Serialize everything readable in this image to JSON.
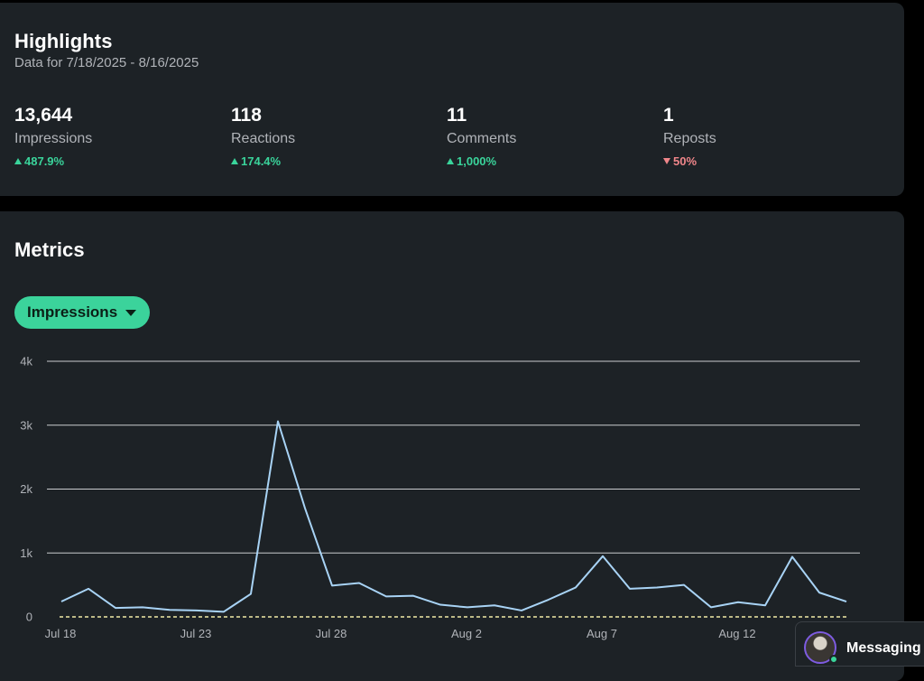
{
  "highlights": {
    "title": "Highlights",
    "subtitle": "Data for 7/18/2025 - 8/16/2025",
    "stats": [
      {
        "value": "13,644",
        "label": "Impressions",
        "change": "487.9%",
        "direction": "up"
      },
      {
        "value": "118",
        "label": "Reactions",
        "change": "174.4%",
        "direction": "up"
      },
      {
        "value": "11",
        "label": "Comments",
        "change": "1,000%",
        "direction": "up"
      },
      {
        "value": "1",
        "label": "Reposts",
        "change": "50%",
        "direction": "down"
      }
    ]
  },
  "metrics": {
    "title": "Metrics",
    "dropdown_label": "Impressions"
  },
  "messaging": {
    "label": "Messaging"
  },
  "colors": {
    "up": "#3ad49b",
    "down": "#f0868a",
    "line": "#a8d3f5",
    "baseline": "#f2e9a6",
    "accent": "#3bd39b"
  },
  "chart_data": {
    "type": "line",
    "title": "",
    "xlabel": "",
    "ylabel": "",
    "ylim": [
      0,
      4000
    ],
    "y_ticks": [
      {
        "value": 0,
        "label": "0"
      },
      {
        "value": 1000,
        "label": "1k"
      },
      {
        "value": 2000,
        "label": "2k"
      },
      {
        "value": 3000,
        "label": "3k"
      },
      {
        "value": 4000,
        "label": "4k"
      }
    ],
    "x_ticks": [
      "Jul 18",
      "Jul 23",
      "Jul 28",
      "Aug 2",
      "Aug 7",
      "Aug 12"
    ],
    "x": [
      "Jul 18",
      "Jul 19",
      "Jul 20",
      "Jul 21",
      "Jul 22",
      "Jul 23",
      "Jul 24",
      "Jul 25",
      "Jul 26",
      "Jul 27",
      "Jul 28",
      "Jul 29",
      "Jul 30",
      "Jul 31",
      "Aug 1",
      "Aug 2",
      "Aug 3",
      "Aug 4",
      "Aug 5",
      "Aug 6",
      "Aug 7",
      "Aug 8",
      "Aug 9",
      "Aug 10",
      "Aug 11",
      "Aug 12",
      "Aug 13",
      "Aug 14",
      "Aug 15",
      "Aug 16"
    ],
    "series": [
      {
        "values": [
          240,
          440,
          140,
          150,
          110,
          100,
          80,
          360,
          3060,
          1700,
          490,
          530,
          320,
          330,
          190,
          150,
          180,
          100,
          270,
          460,
          950,
          440,
          460,
          500,
          150,
          230,
          180,
          940,
          380,
          240
        ]
      },
      {
        "values": [
          0,
          0,
          0,
          0,
          0,
          0,
          0,
          0,
          0,
          0,
          0,
          0,
          0,
          0,
          0,
          0,
          0,
          0,
          0,
          0,
          0,
          0,
          0,
          0,
          0,
          0,
          0,
          0,
          0,
          0
        ]
      }
    ],
    "grid": true,
    "legend": "none"
  }
}
